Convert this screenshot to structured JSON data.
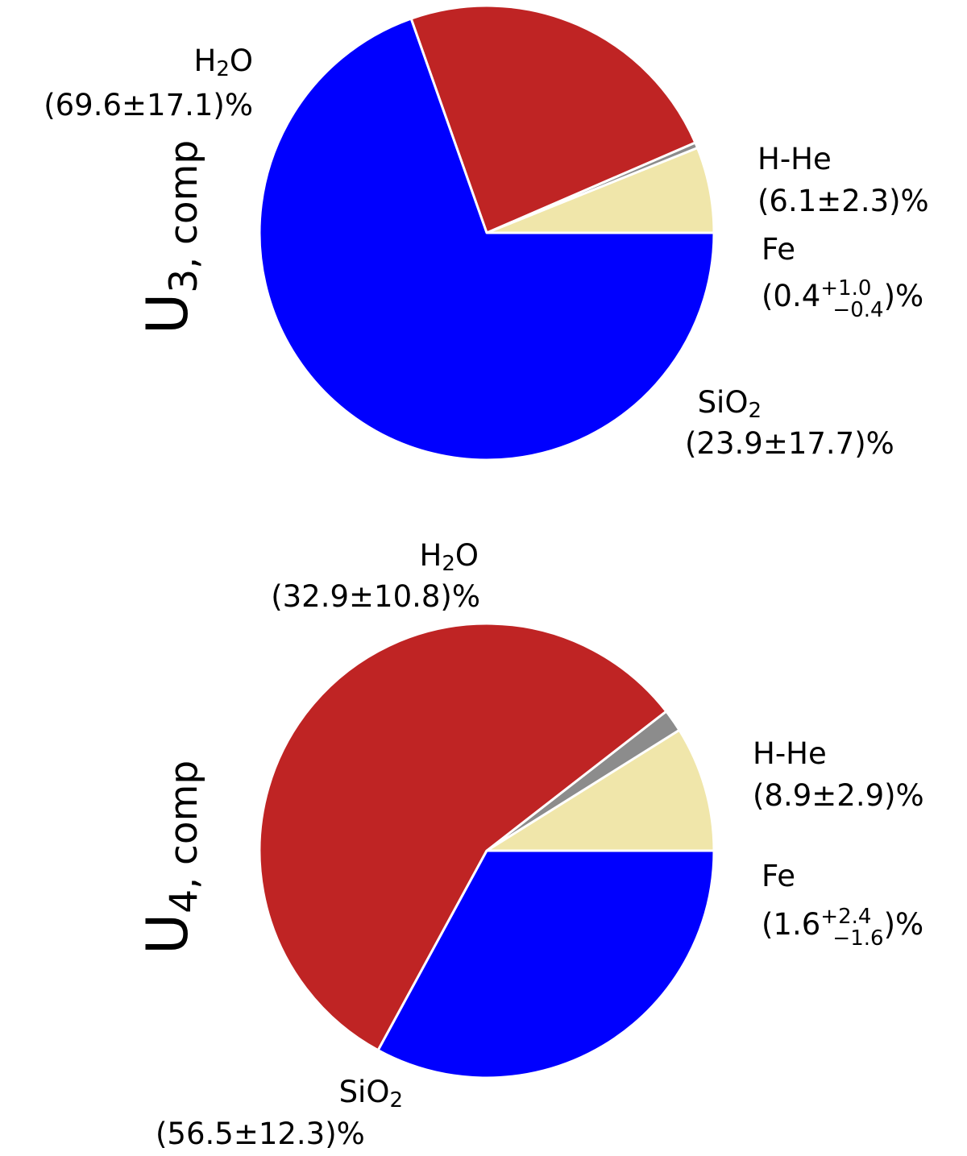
{
  "colors": {
    "H-He": "#f0e6aa",
    "Fe": "#8c8c8c",
    "SiO2": "#bf2424",
    "H2O": "#0000ff",
    "edge": "#ffffff"
  },
  "chart_data": [
    {
      "type": "pie",
      "ylabel_main": "U",
      "ylabel_sub": "3, comp",
      "slices": [
        {
          "name": "H-He",
          "value": 6.1,
          "label_name": "H-He",
          "label_value": "(6.1±2.3)%"
        },
        {
          "name": "Fe",
          "value": 0.4,
          "label_name": "Fe",
          "label_pre": "(0.4",
          "err_plus": "+1.0",
          "err_minus": "−0.4",
          "label_post": ")%"
        },
        {
          "name": "SiO2",
          "value": 23.9,
          "label_name_pre": "SiO",
          "label_name_sub": "2",
          "label_value": "(23.9±17.7)%"
        },
        {
          "name": "H2O",
          "value": 69.6,
          "label_name_pre": "H",
          "label_name_sub": "2",
          "label_name_post": "O",
          "label_value": "(69.6±17.1)%"
        }
      ]
    },
    {
      "type": "pie",
      "ylabel_main": "U",
      "ylabel_sub": "4, comp",
      "slices": [
        {
          "name": "H-He",
          "value": 8.9,
          "label_name": "H-He",
          "label_value": "(8.9±2.9)%"
        },
        {
          "name": "Fe",
          "value": 1.6,
          "label_name": "Fe",
          "label_pre": "(1.6",
          "err_plus": "+2.4",
          "err_minus": "−1.6",
          "label_post": ")%"
        },
        {
          "name": "SiO2",
          "value": 56.5,
          "label_name_pre": "SiO",
          "label_name_sub": "2",
          "label_value": "(56.5±12.3)%"
        },
        {
          "name": "H2O",
          "value": 32.9,
          "label_name_pre": "H",
          "label_name_sub": "2",
          "label_name_post": "O",
          "label_value": "(32.9±10.8)%"
        }
      ]
    }
  ]
}
